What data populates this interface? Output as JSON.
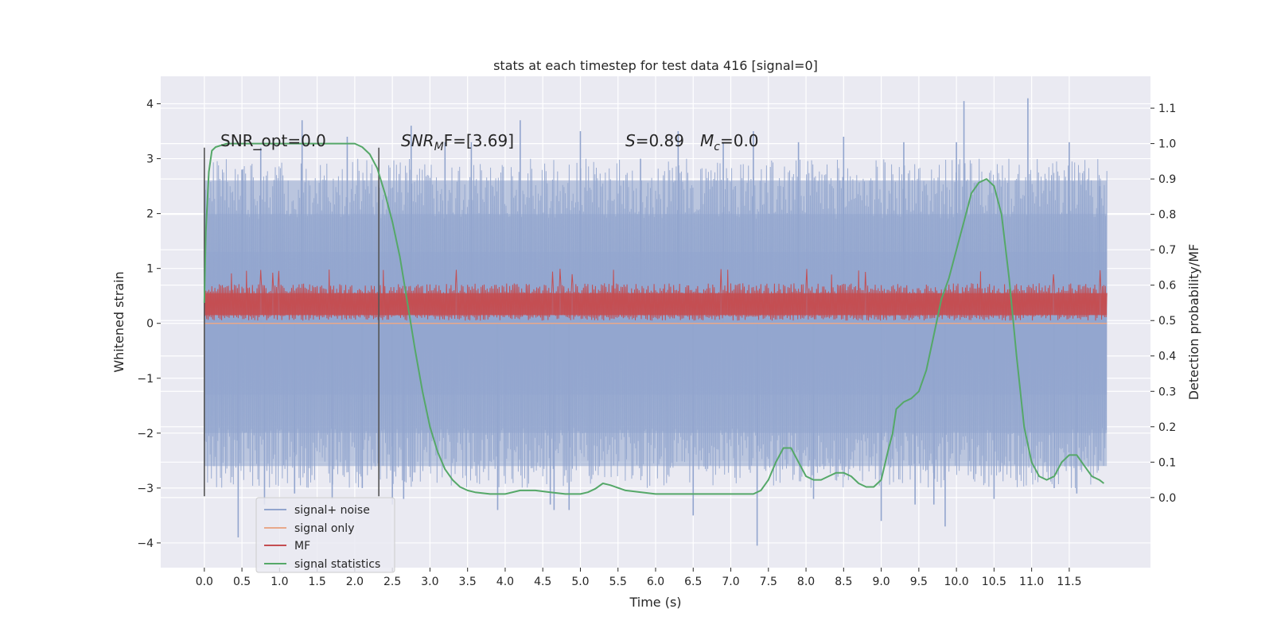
{
  "chart_data": {
    "type": "line",
    "title": "stats at each timestep for test data 416 [signal=0]",
    "xlabel": "Time (s)",
    "ylabel": "Whitened strain",
    "y2label": "Detection probability/MF",
    "xlim": [
      -0.58,
      12.58
    ],
    "ylim": [
      -4.45,
      4.5
    ],
    "y2lim": [
      -0.198,
      1.19
    ],
    "grid": true,
    "legend_position": "lower-left",
    "x_ticks": [
      0.0,
      0.5,
      1.0,
      1.5,
      2.0,
      2.5,
      3.0,
      3.5,
      4.0,
      4.5,
      5.0,
      5.5,
      6.0,
      6.5,
      7.0,
      7.5,
      8.0,
      8.5,
      9.0,
      9.5,
      10.0,
      10.5,
      11.0,
      11.5
    ],
    "x_tick_labels": [
      "0.0",
      "0.5",
      "1.0",
      "1.5",
      "2.0",
      "2.5",
      "3.0",
      "3.5",
      "4.0",
      "4.5",
      "5.0",
      "5.5",
      "6.0",
      "6.5",
      "7.0",
      "7.5",
      "8.0",
      "8.5",
      "9.0",
      "9.5",
      "10.0",
      "10.5",
      "11.0",
      "11.5"
    ],
    "y_ticks": [
      4,
      3,
      2,
      1,
      0,
      -1,
      -2,
      -3,
      -4
    ],
    "y_tick_labels": [
      "4",
      "3",
      "2",
      "1",
      "0",
      "−1",
      "−2",
      "−3",
      "−4"
    ],
    "y2_ticks": [
      1.1,
      1.0,
      0.9,
      0.8,
      0.7,
      0.6,
      0.5,
      0.4,
      0.3,
      0.2,
      0.1,
      0.0
    ],
    "y2_tick_labels": [
      "1.1",
      "1.0",
      "0.9",
      "0.8",
      "0.7",
      "0.6",
      "0.5",
      "0.4",
      "0.3",
      "0.2",
      "0.1",
      "0.0"
    ],
    "annotations": {
      "snr_opt": "SNR_opt=0.0",
      "snr_mf_base": "SNR",
      "snr_mf_sub": "M",
      "snr_mf_rest": "F=[3.69]",
      "s_label": "S",
      "s_value": "=0.89",
      "mc_label": "M",
      "mc_sub": "c",
      "mc_value": "=0.0"
    },
    "vlines": [
      {
        "x": 0.0,
        "y": [
          -3.15,
          3.2
        ]
      },
      {
        "x": 2.32,
        "y": [
          -3.15,
          3.2
        ]
      }
    ],
    "series": [
      {
        "name": "signal+ noise",
        "color": "#92a5ce",
        "axis": "left",
        "x_range": [
          0.0,
          12.0
        ],
        "spikes": [
          {
            "x": 0.45,
            "y": -3.9
          },
          {
            "x": 0.5,
            "y": 2.8
          },
          {
            "x": 0.75,
            "y": 3.2
          },
          {
            "x": 0.8,
            "y": -3.3
          },
          {
            "x": 1.3,
            "y": 3.7
          },
          {
            "x": 1.2,
            "y": -3.1
          },
          {
            "x": 1.7,
            "y": -3.2
          },
          {
            "x": 1.9,
            "y": 3.4
          },
          {
            "x": 2.1,
            "y": -3.0
          },
          {
            "x": 2.5,
            "y": -3.3
          },
          {
            "x": 2.75,
            "y": 3.6
          },
          {
            "x": 2.65,
            "y": -3.2
          },
          {
            "x": 3.2,
            "y": 3.3
          },
          {
            "x": 3.55,
            "y": 3.3
          },
          {
            "x": 3.9,
            "y": -3.4
          },
          {
            "x": 4.2,
            "y": 3.7
          },
          {
            "x": 4.6,
            "y": -3.3
          },
          {
            "x": 4.65,
            "y": -3.4
          },
          {
            "x": 4.85,
            "y": -3.4
          },
          {
            "x": 5.0,
            "y": 3.5
          },
          {
            "x": 5.8,
            "y": 3.0
          },
          {
            "x": 6.3,
            "y": 3.5
          },
          {
            "x": 6.5,
            "y": -3.5
          },
          {
            "x": 6.9,
            "y": 3.3
          },
          {
            "x": 7.3,
            "y": 3.5
          },
          {
            "x": 7.35,
            "y": -4.05
          },
          {
            "x": 7.9,
            "y": 3.3
          },
          {
            "x": 8.1,
            "y": -3.2
          },
          {
            "x": 8.5,
            "y": 3.4
          },
          {
            "x": 9.0,
            "y": -3.6
          },
          {
            "x": 9.3,
            "y": 3.3
          },
          {
            "x": 9.45,
            "y": -3.3
          },
          {
            "x": 9.7,
            "y": -3.3
          },
          {
            "x": 9.85,
            "y": -3.7
          },
          {
            "x": 10.0,
            "y": 3.3
          },
          {
            "x": 10.1,
            "y": 4.05
          },
          {
            "x": 10.5,
            "y": -3.2
          },
          {
            "x": 10.95,
            "y": 4.1
          },
          {
            "x": 11.3,
            "y": -3.0
          },
          {
            "x": 11.5,
            "y": 3.3
          },
          {
            "x": 11.6,
            "y": -3.1
          },
          {
            "x": 11.9,
            "y": 2.5
          }
        ],
        "bands": [
          {
            "lo": -1.3,
            "hi": 1.3
          },
          {
            "lo": -2.0,
            "hi": 2.0
          },
          {
            "lo": -2.6,
            "hi": 2.6
          }
        ]
      },
      {
        "name": "signal only",
        "color": "#e8a88a",
        "axis": "left",
        "x": [
          0.0,
          12.0
        ],
        "values": [
          0.0,
          0.0
        ]
      },
      {
        "name": "MF",
        "color": "#c44e52",
        "axis": "left",
        "x_range": [
          0.0,
          12.0
        ],
        "level_range": [
          0.05,
          0.65
        ],
        "spike_max": 1.0
      },
      {
        "name": "signal statistics",
        "color": "#55a868",
        "axis": "right",
        "x": [
          0.0,
          0.02,
          0.06,
          0.1,
          0.15,
          0.3,
          0.5,
          1.0,
          1.5,
          2.0,
          2.1,
          2.2,
          2.3,
          2.4,
          2.5,
          2.6,
          2.7,
          2.8,
          2.9,
          3.0,
          3.1,
          3.2,
          3.3,
          3.4,
          3.5,
          3.6,
          3.8,
          4.0,
          4.2,
          4.4,
          4.6,
          4.8,
          5.0,
          5.1,
          5.2,
          5.3,
          5.4,
          5.6,
          6.0,
          6.5,
          7.0,
          7.2,
          7.3,
          7.4,
          7.5,
          7.6,
          7.7,
          7.8,
          7.9,
          8.0,
          8.1,
          8.2,
          8.3,
          8.4,
          8.5,
          8.6,
          8.7,
          8.8,
          8.9,
          9.0,
          9.1,
          9.15,
          9.2,
          9.3,
          9.4,
          9.5,
          9.6,
          9.7,
          9.8,
          9.9,
          10.0,
          10.1,
          10.2,
          10.3,
          10.4,
          10.5,
          10.6,
          10.7,
          10.8,
          10.9,
          11.0,
          11.1,
          11.2,
          11.3,
          11.4,
          11.5,
          11.6,
          11.7,
          11.8,
          11.9,
          11.96
        ],
        "values": [
          0.55,
          0.75,
          0.92,
          0.98,
          0.99,
          1.0,
          1.0,
          1.0,
          1.0,
          1.0,
          0.99,
          0.97,
          0.93,
          0.86,
          0.78,
          0.68,
          0.55,
          0.42,
          0.3,
          0.2,
          0.13,
          0.08,
          0.05,
          0.03,
          0.02,
          0.015,
          0.01,
          0.01,
          0.02,
          0.02,
          0.015,
          0.01,
          0.01,
          0.015,
          0.025,
          0.04,
          0.035,
          0.02,
          0.01,
          0.01,
          0.01,
          0.01,
          0.01,
          0.02,
          0.05,
          0.1,
          0.14,
          0.14,
          0.1,
          0.06,
          0.05,
          0.05,
          0.06,
          0.07,
          0.07,
          0.06,
          0.04,
          0.03,
          0.03,
          0.05,
          0.14,
          0.18,
          0.25,
          0.27,
          0.28,
          0.3,
          0.36,
          0.46,
          0.56,
          0.62,
          0.7,
          0.78,
          0.86,
          0.89,
          0.9,
          0.88,
          0.8,
          0.62,
          0.4,
          0.2,
          0.1,
          0.06,
          0.05,
          0.06,
          0.1,
          0.12,
          0.12,
          0.09,
          0.06,
          0.05,
          0.04
        ]
      }
    ]
  }
}
